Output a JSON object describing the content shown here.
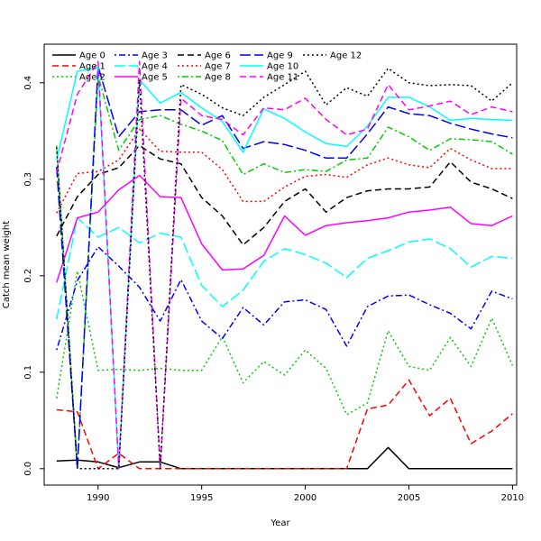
{
  "chart_data": {
    "type": "line",
    "xlabel": "Year",
    "ylabel": "Catch mean weight",
    "xlim": [
      1987.4,
      2010.2
    ],
    "ylim": [
      -0.017,
      0.44
    ],
    "x_ticks": [
      1990,
      1995,
      2000,
      2005,
      2010
    ],
    "x_tick_labels": [
      "1990",
      "1995",
      "2000",
      "2005",
      "2010"
    ],
    "y_ticks": [
      0.0,
      0.1,
      0.2,
      0.3,
      0.4
    ],
    "y_tick_labels": [
      "0.0",
      "0.1",
      "0.2",
      "0.3",
      "0.4"
    ],
    "grid": false,
    "legend_position": "top-left",
    "legend_columns": 5,
    "x": [
      1988,
      1989,
      1990,
      1991,
      1992,
      1993,
      1994,
      1995,
      1996,
      1997,
      1998,
      1999,
      2000,
      2001,
      2002,
      2003,
      2004,
      2005,
      2006,
      2007,
      2008,
      2009,
      2010
    ],
    "series": [
      {
        "name": "Age 0",
        "color": "#000000",
        "dash": "solid",
        "values": [
          0.008,
          0.009,
          0.007,
          0.001,
          0.007,
          0.007,
          0.0,
          0.0,
          0.0,
          0.0,
          0.0,
          0.0,
          0.0,
          0.0,
          0.0,
          0.0,
          0.022,
          0.0,
          0.0,
          0.0,
          0.0,
          0.0,
          0.0
        ]
      },
      {
        "name": "Age 1",
        "color": "#ff0000",
        "dash": "dashed",
        "values": [
          0.061,
          0.059,
          0.0,
          0.016,
          0.0,
          0.0,
          0.0,
          0.0,
          0.0,
          0.0,
          0.0,
          0.0,
          0.0,
          0.0,
          0.0,
          0.062,
          0.066,
          0.092,
          0.055,
          0.073,
          0.026,
          0.039,
          0.057
        ]
      },
      {
        "name": "Age 2",
        "color": "#00cd00",
        "dash": "dotted",
        "values": [
          0.073,
          0.205,
          0.102,
          0.103,
          0.102,
          0.104,
          0.102,
          0.102,
          0.137,
          0.089,
          0.111,
          0.097,
          0.123,
          0.104,
          0.056,
          0.068,
          0.143,
          0.106,
          0.102,
          0.136,
          0.106,
          0.156,
          0.107
        ]
      },
      {
        "name": "Age 3",
        "color": "#0000ff",
        "dash": "dashdot",
        "values": [
          0.123,
          0.195,
          0.23,
          0.21,
          0.188,
          0.153,
          0.196,
          0.153,
          0.135,
          0.167,
          0.149,
          0.173,
          0.175,
          0.165,
          0.127,
          0.168,
          0.179,
          0.18,
          0.17,
          0.161,
          0.145,
          0.184,
          0.176
        ]
      },
      {
        "name": "Age 4",
        "color": "#00ffff",
        "dash": "longdash",
        "values": [
          0.155,
          0.26,
          0.24,
          0.25,
          0.234,
          0.244,
          0.24,
          0.19,
          0.168,
          0.185,
          0.215,
          0.228,
          0.222,
          0.213,
          0.198,
          0.218,
          0.226,
          0.235,
          0.238,
          0.228,
          0.209,
          0.22,
          0.218
        ]
      },
      {
        "name": "Age 5",
        "color": "#ff00ff",
        "dash": "solid",
        "values": [
          0.193,
          0.26,
          0.266,
          0.289,
          0.304,
          0.282,
          0.281,
          0.233,
          0.206,
          0.207,
          0.221,
          0.262,
          0.242,
          0.252,
          0.255,
          0.257,
          0.26,
          0.266,
          0.268,
          0.271,
          0.254,
          0.252,
          0.262
        ]
      },
      {
        "name": "Age 6",
        "color": "#000000",
        "dash": "dashed",
        "values": [
          0.241,
          0.282,
          0.305,
          0.312,
          0.335,
          0.321,
          0.316,
          0.281,
          0.262,
          0.232,
          0.25,
          0.277,
          0.29,
          0.266,
          0.281,
          0.288,
          0.29,
          0.29,
          0.292,
          0.318,
          0.297,
          0.29,
          0.28
        ]
      },
      {
        "name": "Age 7",
        "color": "#ff0000",
        "dash": "dotted",
        "values": [
          0.265,
          0.306,
          0.308,
          0.32,
          0.352,
          0.329,
          0.328,
          0.328,
          0.31,
          0.277,
          0.277,
          0.292,
          0.303,
          0.305,
          0.302,
          0.315,
          0.322,
          0.315,
          0.312,
          0.332,
          0.32,
          0.311,
          0.311
        ]
      },
      {
        "name": "Age 8",
        "color": "#00cd00",
        "dash": "dashdot",
        "values": [
          0.335,
          0.0,
          0.407,
          0.33,
          0.362,
          0.366,
          0.357,
          0.35,
          0.34,
          0.305,
          0.316,
          0.307,
          0.31,
          0.308,
          0.32,
          0.322,
          0.354,
          0.344,
          0.33,
          0.342,
          0.341,
          0.339,
          0.326
        ]
      },
      {
        "name": "Age 9",
        "color": "#0000ff",
        "dash": "longdash",
        "values": [
          0.313,
          0.0,
          0.417,
          0.344,
          0.37,
          0.372,
          0.372,
          0.356,
          0.366,
          0.332,
          0.339,
          0.336,
          0.33,
          0.322,
          0.322,
          0.347,
          0.375,
          0.368,
          0.366,
          0.358,
          0.352,
          0.347,
          0.343
        ]
      },
      {
        "name": "Age 10",
        "color": "#00ffff",
        "dash": "solid",
        "values": [
          0.32,
          0.412,
          0.416,
          0.0,
          0.403,
          0.379,
          0.39,
          0.374,
          0.36,
          0.328,
          0.373,
          0.363,
          0.349,
          0.337,
          0.334,
          0.355,
          0.385,
          0.385,
          0.375,
          0.361,
          0.363,
          0.362,
          0.361
        ]
      },
      {
        "name": "Age 11",
        "color": "#ff00ff",
        "dash": "dashed",
        "values": [
          0.307,
          0.388,
          0.422,
          0.0,
          0.422,
          0.0,
          0.384,
          0.366,
          0.362,
          0.346,
          0.374,
          0.372,
          0.384,
          0.362,
          0.346,
          0.352,
          0.398,
          0.372,
          0.376,
          0.381,
          0.367,
          0.375,
          0.37
        ]
      },
      {
        "name": "Age 12",
        "color": "#000000",
        "dash": "dotted",
        "values": [
          0.333,
          0.0,
          0.0,
          0.0,
          0.403,
          0.0,
          0.398,
          0.388,
          0.374,
          0.366,
          0.385,
          0.398,
          0.412,
          0.377,
          0.395,
          0.386,
          0.415,
          0.4,
          0.397,
          0.398,
          0.397,
          0.381,
          0.4
        ]
      }
    ]
  }
}
